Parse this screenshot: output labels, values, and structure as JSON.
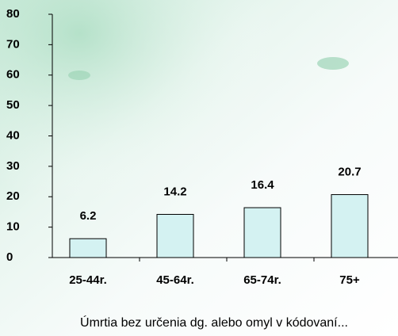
{
  "chart_data": {
    "type": "bar",
    "categories": [
      "25-44r.",
      "45-64r.",
      "65-74r.",
      "75+"
    ],
    "values": [
      6.2,
      14.2,
      16.4,
      20.7
    ],
    "color": "#d4f2f2",
    "ylim": [
      0,
      80
    ],
    "yticks": [
      0,
      10,
      20,
      30,
      40,
      50,
      60,
      70,
      80
    ],
    "xlabel": "Úmrtia bez určenia dg. alebo omyl v kódovaní..."
  }
}
